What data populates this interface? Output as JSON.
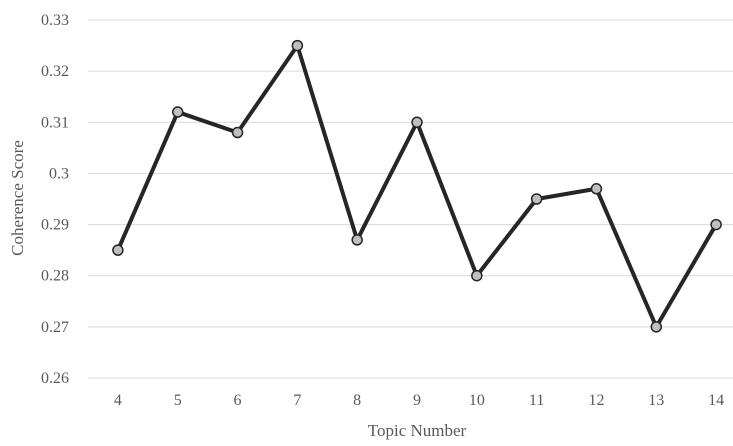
{
  "chart_data": {
    "type": "line",
    "title": "",
    "xlabel": "Topic Number",
    "ylabel": "Coherence Score",
    "categories": [
      "4",
      "5",
      "6",
      "7",
      "8",
      "9",
      "10",
      "11",
      "12",
      "13",
      "14"
    ],
    "series": [
      {
        "values": [
          0.285,
          0.312,
          0.308,
          0.325,
          0.287,
          0.31,
          0.28,
          0.295,
          0.297,
          0.27,
          0.29
        ]
      }
    ],
    "ylim": [
      0.26,
      0.33
    ],
    "yticks": [
      "0.26",
      "0.27",
      "0.28",
      "0.29",
      "0.3",
      "0.31",
      "0.32",
      "0.33"
    ],
    "grid": "horizontal",
    "legend": "none",
    "colors": {
      "line": "#262626",
      "marker_fill": "#bfbfbf",
      "grid": "#d9d9d9",
      "text": "#595959"
    }
  }
}
